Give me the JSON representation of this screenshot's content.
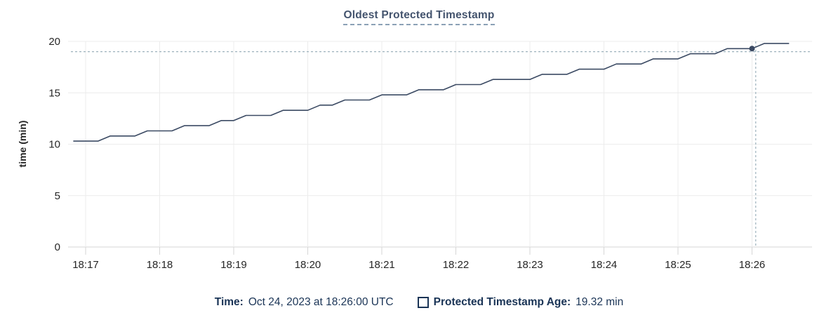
{
  "title": "Oldest Protected Timestamp",
  "y_axis_label": "time (min)",
  "legend": {
    "time_label": "Time:",
    "time_value": "Oct 24, 2023 at 18:26:00 UTC",
    "series_label": "Protected Timestamp Age:",
    "series_value": "19.32 min"
  },
  "colors": {
    "series_line": "#3b4a63",
    "dot": "#3b4a63",
    "crosshair": "#9db2bd",
    "gridline": "#ececec",
    "axis_line": "#d6d6d6",
    "tick_text": "#262626",
    "title_text": "#44546e",
    "legend_text": "#1a3456"
  },
  "chart_data": {
    "type": "line",
    "title": "Oldest Protected Timestamp",
    "xlabel": "",
    "ylabel": "time (min)",
    "ylim": [
      0,
      20
    ],
    "yticks": [
      0,
      5,
      10,
      15,
      20
    ],
    "x_tick_labels": [
      "18:17",
      "18:18",
      "18:19",
      "18:20",
      "18:21",
      "18:22",
      "18:23",
      "18:24",
      "18:25",
      "18:26"
    ],
    "x_tick_interval_s": 60,
    "grid": true,
    "legend_position": "bottom",
    "series": [
      {
        "name": "Protected Timestamp Age",
        "unit": "min",
        "points": [
          [
            -10,
            10.3
          ],
          [
            0,
            10.3
          ],
          [
            10,
            10.3
          ],
          [
            20,
            10.8
          ],
          [
            30,
            10.8
          ],
          [
            40,
            10.8
          ],
          [
            50,
            11.3
          ],
          [
            60,
            11.3
          ],
          [
            70,
            11.3
          ],
          [
            80,
            11.8
          ],
          [
            90,
            11.8
          ],
          [
            100,
            11.8
          ],
          [
            110,
            12.3
          ],
          [
            120,
            12.3
          ],
          [
            130,
            12.8
          ],
          [
            140,
            12.8
          ],
          [
            150,
            12.8
          ],
          [
            160,
            13.3
          ],
          [
            170,
            13.3
          ],
          [
            180,
            13.3
          ],
          [
            190,
            13.8
          ],
          [
            200,
            13.8
          ],
          [
            210,
            14.3
          ],
          [
            220,
            14.3
          ],
          [
            230,
            14.3
          ],
          [
            240,
            14.8
          ],
          [
            250,
            14.8
          ],
          [
            260,
            14.8
          ],
          [
            270,
            15.3
          ],
          [
            280,
            15.3
          ],
          [
            290,
            15.3
          ],
          [
            300,
            15.8
          ],
          [
            310,
            15.8
          ],
          [
            320,
            15.8
          ],
          [
            330,
            16.3
          ],
          [
            340,
            16.3
          ],
          [
            350,
            16.3
          ],
          [
            360,
            16.3
          ],
          [
            370,
            16.8
          ],
          [
            380,
            16.8
          ],
          [
            390,
            16.8
          ],
          [
            400,
            17.3
          ],
          [
            410,
            17.3
          ],
          [
            420,
            17.3
          ],
          [
            430,
            17.8
          ],
          [
            440,
            17.8
          ],
          [
            450,
            17.8
          ],
          [
            460,
            18.3
          ],
          [
            470,
            18.3
          ],
          [
            480,
            18.3
          ],
          [
            490,
            18.8
          ],
          [
            500,
            18.8
          ],
          [
            510,
            18.8
          ],
          [
            520,
            19.3
          ],
          [
            530,
            19.3
          ],
          [
            540,
            19.3
          ],
          [
            550,
            19.8
          ],
          [
            560,
            19.8
          ],
          [
            570,
            19.8
          ]
        ]
      }
    ],
    "hover": {
      "snap_offset_s": 540,
      "snap_time_text": "Oct 24, 2023 at 18:26:00 UTC",
      "snap_value": 19.32,
      "snap_value_text": "19.32 min",
      "crosshair_offset_s": 543,
      "crosshair_value": 19.0
    }
  }
}
